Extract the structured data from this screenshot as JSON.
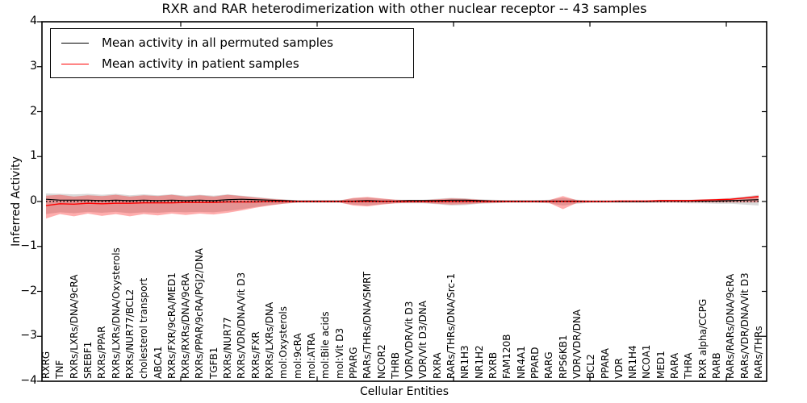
{
  "chart_data": {
    "type": "line",
    "title": "RXR and RAR heterodimerization with other nuclear receptor -- 43 samples",
    "xlabel": "Cellular Entities",
    "ylabel": "Inferred Activity",
    "ylim": [
      -4,
      4
    ],
    "y_ticks": [
      4,
      3,
      2,
      1,
      0,
      -1,
      -2,
      -3,
      -4
    ],
    "y_tick_labels": [
      "4",
      "3",
      "2",
      "1",
      "0",
      "−1",
      "−2",
      "−3",
      "−4"
    ],
    "grid": false,
    "legend_position": "upper left",
    "categories": [
      "RXRG",
      "TNF",
      "RXRs/LXRs/DNA/9cRA",
      "SREBF1",
      "RXRs/PPAR",
      "RXRs/LXRs/DNA/Oxysterols",
      "RXRs/NUR77/BCL2",
      "cholesterol transport",
      "ABCA1",
      "RXRs/FXR/9cRA/MED1",
      "RXRs/RXRs/DNA/9cRA",
      "RXRs/PPAR/9cRA/PGJ2/DNA",
      "TGFB1",
      "RXRs/NUR77",
      "RXRs/VDR/DNA/Vit D3",
      "RXRs/FXR",
      "RXRs/LXRs/DNA",
      "mol:Oxysterols",
      "mol:9cRA",
      "mol:ATRA",
      "mol:Bile acids",
      "mol:Vit D3",
      "PPARG",
      "RARs/THRs/DNA/SMRT",
      "NCOR2",
      "THRB",
      "VDR/VDR/Vit D3",
      "VDR/Vit D3/DNA",
      "RXRA",
      "RARs/THRs/DNA/Src-1",
      "NR1H3",
      "NR1H2",
      "RXRB",
      "FAM120B",
      "NR4A1",
      "PPARD",
      "RARG",
      "RPS6KB1",
      "VDR/VDR/DNA",
      "BCL2",
      "PPARA",
      "VDR",
      "NR1H4",
      "NCOA1",
      "MED1",
      "RARA",
      "THRA",
      "RXR alpha/CCPG",
      "RARB",
      "RARs/RARs/DNA/9cRA",
      "RARs/VDR/DNA/Vit D3",
      "RARs/THRs"
    ],
    "series": [
      {
        "name": "Mean activity in all permuted samples",
        "color": "#000000",
        "style": "solid",
        "values": [
          0.05,
          0.03,
          0.03,
          0.03,
          0.02,
          0.03,
          0.02,
          0.03,
          0.02,
          0.03,
          0.02,
          0.03,
          0.02,
          0.04,
          0.05,
          0.04,
          0.03,
          0.02,
          0.01,
          0.01,
          0.01,
          0.01,
          0.01,
          0.02,
          0.01,
          0.01,
          0.02,
          0.02,
          0.02,
          0.03,
          0.03,
          0.02,
          0.01,
          0.01,
          0.01,
          0.01,
          0.01,
          0.01,
          0.01,
          0.0,
          0.0,
          0.0,
          0.0,
          0.0,
          0.01,
          0.01,
          0.01,
          0.01,
          0.01,
          0.02,
          0.03,
          0.04
        ]
      },
      {
        "name": "Mean activity in patient samples",
        "color": "#ff0000",
        "style": "solid",
        "values": [
          -0.09,
          -0.05,
          -0.06,
          -0.04,
          -0.05,
          -0.04,
          -0.04,
          -0.03,
          -0.03,
          -0.03,
          -0.02,
          -0.02,
          -0.02,
          -0.01,
          -0.01,
          -0.01,
          0.0,
          0.0,
          0.0,
          0.0,
          0.0,
          0.0,
          0.0,
          0.0,
          0.0,
          0.0,
          0.0,
          0.0,
          0.0,
          0.0,
          0.0,
          0.0,
          0.0,
          0.0,
          0.0,
          0.0,
          0.0,
          0.0,
          0.0,
          0.0,
          0.0,
          0.01,
          0.01,
          0.01,
          0.02,
          0.02,
          0.02,
          0.03,
          0.04,
          0.05,
          0.08,
          0.11
        ]
      }
    ],
    "baseline": {
      "value": 0,
      "color": "#000000",
      "style": "dotted"
    },
    "bands": [
      {
        "name": "permuted samples spread",
        "fill": "#787878",
        "opacity": 0.28,
        "upper": [
          0.18,
          0.17,
          0.16,
          0.17,
          0.15,
          0.17,
          0.14,
          0.16,
          0.14,
          0.16,
          0.13,
          0.15,
          0.13,
          0.16,
          0.13,
          0.1,
          0.07,
          0.05,
          0.03,
          0.03,
          0.03,
          0.03,
          0.07,
          0.09,
          0.06,
          0.04,
          0.04,
          0.04,
          0.06,
          0.08,
          0.07,
          0.05,
          0.04,
          0.03,
          0.03,
          0.03,
          0.04,
          0.08,
          0.04,
          0.03,
          0.03,
          0.03,
          0.03,
          0.03,
          0.04,
          0.04,
          0.04,
          0.05,
          0.06,
          0.08,
          0.11,
          0.15
        ],
        "lower": [
          -0.28,
          -0.24,
          -0.26,
          -0.23,
          -0.25,
          -0.23,
          -0.26,
          -0.24,
          -0.25,
          -0.23,
          -0.24,
          -0.23,
          -0.24,
          -0.21,
          -0.17,
          -0.12,
          -0.08,
          -0.05,
          -0.03,
          -0.03,
          -0.03,
          -0.03,
          -0.07,
          -0.09,
          -0.06,
          -0.04,
          -0.04,
          -0.04,
          -0.06,
          -0.09,
          -0.08,
          -0.05,
          -0.04,
          -0.03,
          -0.03,
          -0.03,
          -0.04,
          -0.09,
          -0.05,
          -0.03,
          -0.03,
          -0.03,
          -0.03,
          -0.03,
          -0.03,
          -0.03,
          -0.04,
          -0.04,
          -0.05,
          -0.05,
          -0.07,
          -0.09
        ]
      },
      {
        "name": "patient samples spread",
        "fill": "#ff0000",
        "opacity": 0.32,
        "upper": [
          0.13,
          0.15,
          0.11,
          0.14,
          0.12,
          0.15,
          0.11,
          0.14,
          0.12,
          0.15,
          0.11,
          0.14,
          0.11,
          0.15,
          0.12,
          0.09,
          0.06,
          0.04,
          0.02,
          0.02,
          0.02,
          0.02,
          0.08,
          0.1,
          0.07,
          0.04,
          0.03,
          0.03,
          0.05,
          0.07,
          0.06,
          0.04,
          0.03,
          0.02,
          0.02,
          0.02,
          0.03,
          0.12,
          0.03,
          0.02,
          0.02,
          0.02,
          0.02,
          0.02,
          0.03,
          0.03,
          0.03,
          0.04,
          0.05,
          0.06,
          0.09,
          0.13
        ],
        "lower": [
          -0.38,
          -0.28,
          -0.33,
          -0.27,
          -0.32,
          -0.28,
          -0.33,
          -0.28,
          -0.31,
          -0.27,
          -0.3,
          -0.27,
          -0.29,
          -0.25,
          -0.2,
          -0.14,
          -0.09,
          -0.05,
          -0.02,
          -0.02,
          -0.02,
          -0.02,
          -0.09,
          -0.11,
          -0.07,
          -0.04,
          -0.03,
          -0.03,
          -0.05,
          -0.07,
          -0.06,
          -0.04,
          -0.03,
          -0.02,
          -0.02,
          -0.02,
          -0.03,
          -0.17,
          -0.03,
          -0.02,
          -0.02,
          -0.02,
          -0.02,
          -0.02,
          -0.02,
          -0.02,
          -0.02,
          -0.02,
          -0.02,
          -0.02,
          -0.02,
          -0.02
        ]
      }
    ]
  },
  "legend": {
    "items": [
      {
        "label": "Mean activity in all permuted samples",
        "color": "#000000"
      },
      {
        "label": "Mean activity in patient samples",
        "color": "#ff0000"
      }
    ]
  },
  "colors": {
    "frame": "#000000",
    "background": "#ffffff",
    "permuted_line": "#000000",
    "patient_line": "#ff0000"
  }
}
